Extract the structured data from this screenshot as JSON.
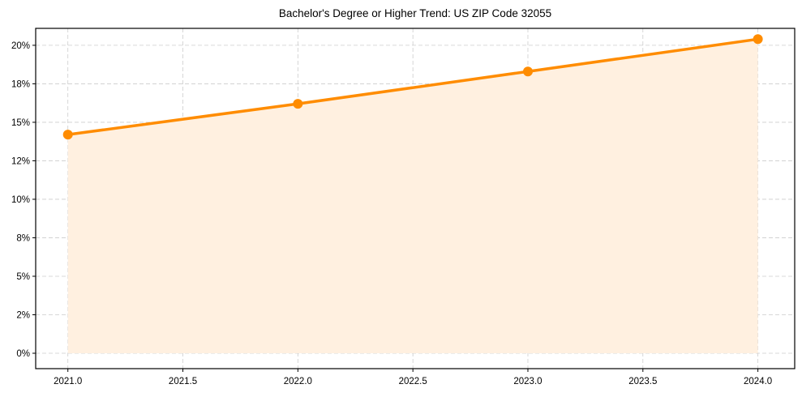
{
  "chart_data": {
    "type": "line",
    "title": "Bachelor's Degree or Higher Trend: US ZIP Code 32055",
    "xlabel": "",
    "ylabel": "",
    "x": [
      2021,
      2022,
      2023,
      2024
    ],
    "series": [
      {
        "name": "Bachelor's Degree or Higher",
        "values": [
          14.2,
          16.2,
          18.3,
          20.4
        ],
        "color": "#ff8c00",
        "fill_color": "#fff0e0"
      }
    ],
    "xlim": [
      2020.86,
      2024.16
    ],
    "ylim": [
      -1.0,
      21.1
    ],
    "x_ticks": [
      2021.0,
      2021.5,
      2022.0,
      2022.5,
      2023.0,
      2023.5,
      2024.0
    ],
    "x_tick_labels": [
      "2021.0",
      "2021.5",
      "2022.0",
      "2022.5",
      "2023.0",
      "2023.5",
      "2024.0"
    ],
    "y_ticks": [
      0,
      2.5,
      5,
      7.5,
      10,
      12.5,
      15,
      17.5,
      20
    ],
    "y_tick_labels": [
      "0%",
      "2%",
      "5%",
      "8%",
      "10%",
      "12%",
      "15%",
      "18%",
      "20%"
    ],
    "grid": true,
    "legend": null
  }
}
